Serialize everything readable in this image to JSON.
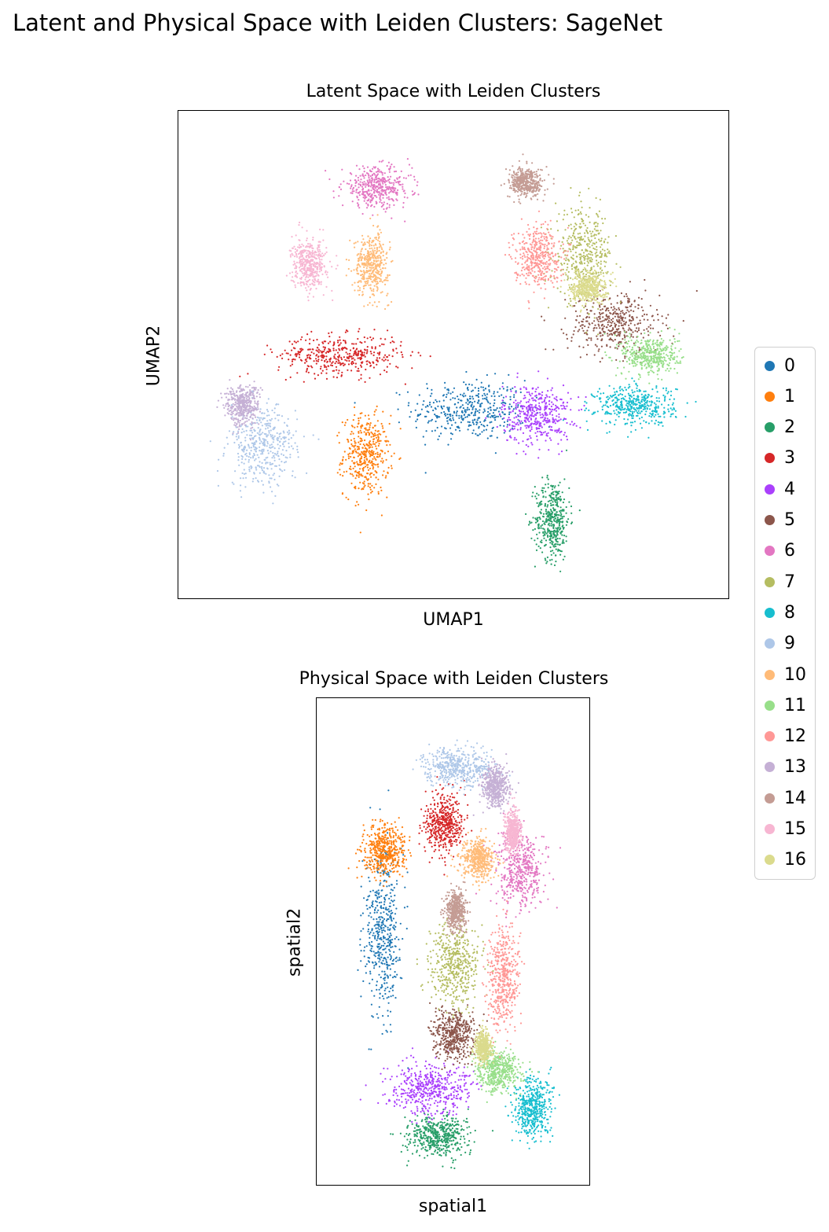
{
  "figure": {
    "suptitle": "Latent and Physical Space with Leiden Clusters: SageNet"
  },
  "chart_data": [
    {
      "type": "scatter",
      "title": "Latent Space with Leiden Clusters",
      "xlabel": "UMAP1",
      "ylabel": "UMAP2",
      "xticks": "none",
      "yticks": "none",
      "grid": false,
      "legend": "right (shared)",
      "xlim": [
        0,
        100
      ],
      "ylim": [
        0,
        100
      ],
      "cluster_centers": [
        {
          "cluster": "0",
          "x": 53,
          "y": 38,
          "sx": 10,
          "sy": 6
        },
        {
          "cluster": "1",
          "x": 33,
          "y": 28,
          "sx": 4,
          "sy": 8
        },
        {
          "cluster": "2",
          "x": 69,
          "y": 14,
          "sx": 3,
          "sy": 8
        },
        {
          "cluster": "3",
          "x": 28,
          "y": 50,
          "sx": 11,
          "sy": 4
        },
        {
          "cluster": "4",
          "x": 66,
          "y": 37,
          "sx": 6,
          "sy": 6
        },
        {
          "cluster": "5",
          "x": 81,
          "y": 57,
          "sx": 8,
          "sy": 6
        },
        {
          "cluster": "6",
          "x": 35,
          "y": 87,
          "sx": 6,
          "sy": 4
        },
        {
          "cluster": "7",
          "x": 75,
          "y": 72,
          "sx": 5,
          "sy": 9
        },
        {
          "cluster": "8",
          "x": 85,
          "y": 39,
          "sx": 7,
          "sy": 4
        },
        {
          "cluster": "9",
          "x": 13,
          "y": 30,
          "sx": 6,
          "sy": 8
        },
        {
          "cluster": "10",
          "x": 34,
          "y": 70,
          "sx": 3,
          "sy": 6
        },
        {
          "cluster": "11",
          "x": 88,
          "y": 50,
          "sx": 5,
          "sy": 4
        },
        {
          "cluster": "12",
          "x": 66,
          "y": 72,
          "sx": 4,
          "sy": 6
        },
        {
          "cluster": "13",
          "x": 9,
          "y": 39,
          "sx": 3,
          "sy": 4
        },
        {
          "cluster": "14",
          "x": 64,
          "y": 88,
          "sx": 3,
          "sy": 3
        },
        {
          "cluster": "15",
          "x": 22,
          "y": 70,
          "sx": 3,
          "sy": 5
        },
        {
          "cluster": "16",
          "x": 76,
          "y": 65,
          "sx": 3,
          "sy": 3
        }
      ]
    },
    {
      "type": "scatter",
      "title": "Physical Space with Leiden Clusters",
      "xlabel": "spatial1",
      "ylabel": "spatial2",
      "xticks": "none",
      "yticks": "none",
      "grid": false,
      "xlim": [
        0,
        100
      ],
      "ylim": [
        0,
        100
      ],
      "cluster_centers": [
        {
          "cluster": "0",
          "x": 21,
          "y": 52,
          "sx": 7,
          "sy": 16
        },
        {
          "cluster": "1",
          "x": 22,
          "y": 70,
          "sx": 8,
          "sy": 5
        },
        {
          "cluster": "2",
          "x": 43,
          "y": 8,
          "sx": 11,
          "sy": 4
        },
        {
          "cluster": "3",
          "x": 46,
          "y": 76,
          "sx": 7,
          "sy": 6
        },
        {
          "cluster": "4",
          "x": 40,
          "y": 18,
          "sx": 15,
          "sy": 5
        },
        {
          "cluster": "5",
          "x": 50,
          "y": 30,
          "sx": 8,
          "sy": 5
        },
        {
          "cluster": "6",
          "x": 77,
          "y": 66,
          "sx": 9,
          "sy": 8
        },
        {
          "cluster": "7",
          "x": 50,
          "y": 45,
          "sx": 9,
          "sy": 8
        },
        {
          "cluster": "8",
          "x": 82,
          "y": 14,
          "sx": 7,
          "sy": 6
        },
        {
          "cluster": "9",
          "x": 52,
          "y": 88,
          "sx": 13,
          "sy": 4
        },
        {
          "cluster": "10",
          "x": 60,
          "y": 68,
          "sx": 6,
          "sy": 4
        },
        {
          "cluster": "11",
          "x": 68,
          "y": 22,
          "sx": 8,
          "sy": 4
        },
        {
          "cluster": "12",
          "x": 70,
          "y": 42,
          "sx": 6,
          "sy": 10
        },
        {
          "cluster": "13",
          "x": 67,
          "y": 84,
          "sx": 5,
          "sy": 4
        },
        {
          "cluster": "14",
          "x": 51,
          "y": 57,
          "sx": 4,
          "sy": 4
        },
        {
          "cluster": "15",
          "x": 74,
          "y": 74,
          "sx": 3,
          "sy": 4
        },
        {
          "cluster": "16",
          "x": 62,
          "y": 27,
          "sx": 3,
          "sy": 3
        }
      ]
    }
  ],
  "legend": {
    "items": [
      "0",
      "1",
      "2",
      "3",
      "4",
      "5",
      "6",
      "7",
      "8",
      "9",
      "10",
      "11",
      "12",
      "13",
      "14",
      "15",
      "16"
    ],
    "colors": [
      "#1f77b4",
      "#ff7f0e",
      "#279e68",
      "#d62728",
      "#aa40fc",
      "#8c564b",
      "#e377c2",
      "#b5bd61",
      "#17becf",
      "#aec7e8",
      "#ffbb78",
      "#98df8a",
      "#ff9896",
      "#c5b0d5",
      "#c49c94",
      "#f7b6d2",
      "#dbdb8d"
    ]
  }
}
